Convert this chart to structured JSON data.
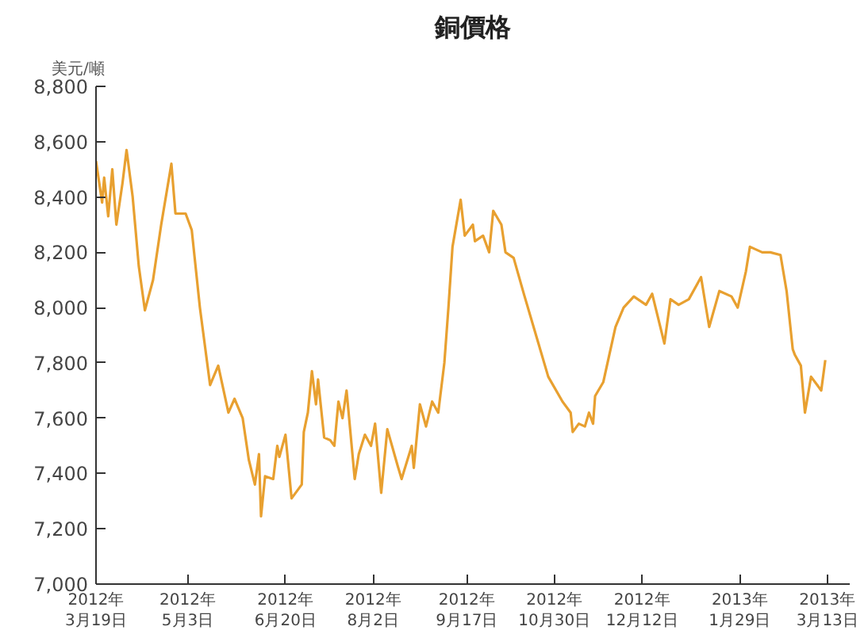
{
  "chart_data": {
    "type": "line",
    "title": "銅價格",
    "ylabel": "美元/噸",
    "x": [
      "2012-03-19",
      "2012-03-22",
      "2012-03-23",
      "2012-03-25",
      "2012-03-27",
      "2012-03-29",
      "2012-04-01",
      "2012-04-03",
      "2012-04-06",
      "2012-04-09",
      "2012-04-12",
      "2012-04-16",
      "2012-04-20",
      "2012-04-25",
      "2012-04-27",
      "2012-05-02",
      "2012-05-05",
      "2012-05-09",
      "2012-05-14",
      "2012-05-18",
      "2012-05-23",
      "2012-05-26",
      "2012-05-30",
      "2012-06-02",
      "2012-06-05",
      "2012-06-07",
      "2012-06-08",
      "2012-06-10",
      "2012-06-14",
      "2012-06-16",
      "2012-06-17",
      "2012-06-20",
      "2012-06-23",
      "2012-06-25",
      "2012-06-28",
      "2012-06-29",
      "2012-07-01",
      "2012-07-03",
      "2012-07-05",
      "2012-07-06",
      "2012-07-09",
      "2012-07-12",
      "2012-07-14",
      "2012-07-16",
      "2012-07-18",
      "2012-07-20",
      "2012-07-24",
      "2012-07-26",
      "2012-07-29",
      "2012-08-01",
      "2012-08-03",
      "2012-08-06",
      "2012-08-09",
      "2012-08-14",
      "2012-08-16",
      "2012-08-21",
      "2012-08-22",
      "2012-08-25",
      "2012-08-28",
      "2012-08-31",
      "2012-09-03",
      "2012-09-06",
      "2012-09-08",
      "2012-09-10",
      "2012-09-14",
      "2012-09-16",
      "2012-09-20",
      "2012-09-21",
      "2012-09-25",
      "2012-09-28",
      "2012-09-30",
      "2012-10-04",
      "2012-10-06",
      "2012-10-10",
      "2012-10-15",
      "2012-10-21",
      "2012-10-27",
      "2012-11-03",
      "2012-11-07",
      "2012-11-08",
      "2012-11-11",
      "2012-11-14",
      "2012-11-16",
      "2012-11-18",
      "2012-11-19",
      "2012-11-23",
      "2012-11-29",
      "2012-12-03",
      "2012-12-08",
      "2012-12-14",
      "2012-12-17",
      "2012-12-23",
      "2012-12-26",
      "2012-12-30",
      "2013-01-04",
      "2013-01-10",
      "2013-01-14",
      "2013-01-19",
      "2013-01-25",
      "2013-01-28",
      "2013-02-01",
      "2013-02-03",
      "2013-02-09",
      "2013-02-13",
      "2013-02-18",
      "2013-02-21",
      "2013-02-24",
      "2013-02-25",
      "2013-02-28",
      "2013-03-02",
      "2013-03-05",
      "2013-03-08",
      "2013-03-10",
      "2013-03-12"
    ],
    "series": [
      {
        "color": "#e8a030",
        "values": [
          8530,
          8380,
          8470,
          8330,
          8500,
          8300,
          8450,
          8570,
          8400,
          8150,
          7990,
          8100,
          8300,
          8520,
          8340,
          8340,
          8280,
          8000,
          7720,
          7790,
          7620,
          7670,
          7600,
          7450,
          7360,
          7470,
          7245,
          7390,
          7380,
          7500,
          7460,
          7540,
          7310,
          7330,
          7360,
          7550,
          7620,
          7770,
          7650,
          7740,
          7530,
          7520,
          7500,
          7660,
          7600,
          7700,
          7380,
          7470,
          7540,
          7500,
          7580,
          7330,
          7560,
          7430,
          7380,
          7500,
          7420,
          7650,
          7570,
          7660,
          7620,
          7800,
          8000,
          8220,
          8390,
          8260,
          8300,
          8240,
          8260,
          8200,
          8350,
          8300,
          8200,
          8180,
          8050,
          7900,
          7750,
          7660,
          7620,
          7550,
          7580,
          7570,
          7620,
          7580,
          7680,
          7730,
          7930,
          8000,
          8040,
          8010,
          8050,
          7870,
          8030,
          8010,
          8030,
          8110,
          7930,
          8060,
          8040,
          8000,
          8130,
          8220,
          8200,
          8200,
          8190,
          8060,
          7850,
          7830,
          7790,
          7620,
          7750,
          7720,
          7700,
          7810
        ]
      }
    ],
    "xlim": [
      "2012-03-19",
      "2013-03-24"
    ],
    "xticks": [
      {
        "value": "2012-03-19",
        "label": "2012年\n3月19日"
      },
      {
        "value": "2012-05-03",
        "label": "2012年\n5月3日"
      },
      {
        "value": "2012-06-20",
        "label": "2012年\n6月20日"
      },
      {
        "value": "2012-08-02",
        "label": "2012年\n8月2日"
      },
      {
        "value": "2012-09-17",
        "label": "2012年\n9月17日"
      },
      {
        "value": "2012-10-30",
        "label": "2012年\n10月30日"
      },
      {
        "value": "2012-12-12",
        "label": "2012年\n12月12日"
      },
      {
        "value": "2013-01-29",
        "label": "2013年\n1月29日"
      },
      {
        "value": "2013-03-13",
        "label": "2013年\n3月13日"
      }
    ],
    "ylim": [
      7000,
      8800
    ],
    "yticks": [
      {
        "value": 7000,
        "label": "7,000"
      },
      {
        "value": 7200,
        "label": "7,200"
      },
      {
        "value": 7400,
        "label": "7,400"
      },
      {
        "value": 7600,
        "label": "7,600"
      },
      {
        "value": 7800,
        "label": "7,800"
      },
      {
        "value": 8000,
        "label": "8,000"
      },
      {
        "value": 8200,
        "label": "8,200"
      },
      {
        "value": 8400,
        "label": "8,400"
      },
      {
        "value": 8600,
        "label": "8,600"
      },
      {
        "value": 8800,
        "label": "8,800"
      }
    ],
    "grid": false,
    "marker": "none",
    "line_style": "solid"
  }
}
